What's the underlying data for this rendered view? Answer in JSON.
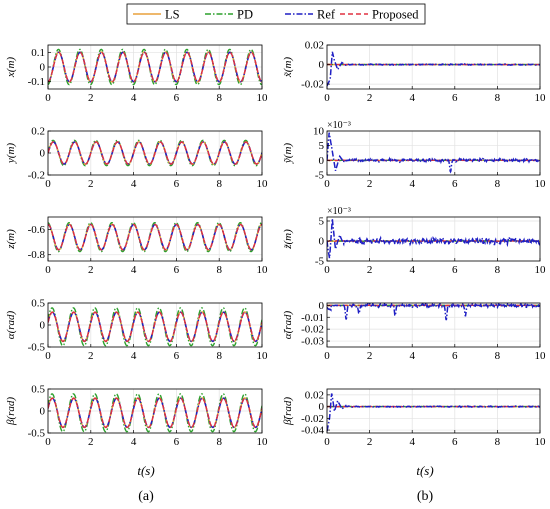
{
  "legend": [
    {
      "label": "LS",
      "color": "#E8A13B",
      "dash": "solid"
    },
    {
      "label": "PD",
      "color": "#2CA02C",
      "dash": "dashdot"
    },
    {
      "label": "Ref",
      "color": "#1F1FC4",
      "dash": "dashdot"
    },
    {
      "label": "Proposed",
      "color": "#E03040",
      "dash": "dashed"
    }
  ],
  "column_tags": {
    "left": "(a)",
    "right": "(b)"
  },
  "xlabel": "t(s)",
  "chart_data": [
    {
      "type": "line",
      "column": "a",
      "row": 0,
      "ylabel": "x(m)",
      "xlim": [
        0,
        10
      ],
      "ylim": [
        -0.15,
        0.15
      ],
      "yticks": [
        -0.1,
        0,
        0.1
      ],
      "ytick_labels": [
        "-0.1",
        "0",
        "0.1"
      ],
      "xticks": [
        0,
        2,
        4,
        6,
        8,
        10
      ],
      "grid": true,
      "signal": {
        "kind": "sine",
        "offset": 0,
        "amplitude": 0.1,
        "freq": 1.0,
        "phase": -1.5708,
        "pd_scale": 1.2
      }
    },
    {
      "type": "line",
      "column": "a",
      "row": 1,
      "ylabel": "y(m)",
      "xlim": [
        0,
        10
      ],
      "ylim": [
        -0.2,
        0.2
      ],
      "yticks": [
        -0.2,
        0,
        0.2
      ],
      "ytick_labels": [
        "-0.2",
        "0",
        "0.2"
      ],
      "xticks": [
        0,
        2,
        4,
        6,
        8,
        10
      ],
      "grid": true,
      "signal": {
        "kind": "sine",
        "offset": 0,
        "amplitude": 0.1,
        "freq": 1.0,
        "phase": 0,
        "pd_scale": 1.15
      }
    },
    {
      "type": "line",
      "column": "a",
      "row": 2,
      "ylabel": "z(m)",
      "xlim": [
        0,
        10
      ],
      "ylim": [
        -0.85,
        -0.5
      ],
      "yticks": [
        -0.8,
        -0.6
      ],
      "ytick_labels": [
        "-0.8",
        "-0.6"
      ],
      "xticks": [
        0,
        2,
        4,
        6,
        8,
        10
      ],
      "grid": true,
      "signal": {
        "kind": "sine",
        "offset": -0.66,
        "amplitude": 0.1,
        "freq": 1.0,
        "phase": 1.5708,
        "pd_scale": 1.15
      }
    },
    {
      "type": "line",
      "column": "a",
      "row": 3,
      "ylabel": "α(rad)",
      "xlim": [
        0,
        10
      ],
      "ylim": [
        -0.5,
        0.5
      ],
      "yticks": [
        -0.5,
        0,
        0.5
      ],
      "ytick_labels": [
        "-0.5",
        "0",
        "0.5"
      ],
      "xticks": [
        0,
        2,
        4,
        6,
        8,
        10
      ],
      "grid": true,
      "signal": {
        "kind": "sine",
        "offset": -0.04,
        "amplitude": 0.33,
        "freq": 1.0,
        "phase": 0.3,
        "pd_scale": 1.3
      }
    },
    {
      "type": "line",
      "column": "a",
      "row": 4,
      "ylabel": "β(rad)",
      "xlim": [
        0,
        10
      ],
      "ylim": [
        -0.5,
        0.5
      ],
      "yticks": [
        -0.5,
        0,
        0.5
      ],
      "ytick_labels": [
        "-0.5",
        "0",
        "0.5"
      ],
      "xticks": [
        0,
        2,
        4,
        6,
        8,
        10
      ],
      "grid": true,
      "signal": {
        "kind": "sine",
        "offset": -0.04,
        "amplitude": 0.33,
        "freq": 1.0,
        "phase": 0.3,
        "pd_scale": 1.3
      }
    },
    {
      "type": "line",
      "column": "b",
      "row": 0,
      "ylabel": "x̃(m)",
      "xlim": [
        0,
        10
      ],
      "ylim": [
        -0.025,
        0.02
      ],
      "yticks": [
        -0.02,
        0,
        0.02
      ],
      "ytick_labels": [
        "-0.02",
        "0",
        "0.02"
      ],
      "xticks": [
        0,
        2,
        4,
        6,
        8,
        10
      ],
      "grid": true,
      "signal": {
        "kind": "error",
        "transient": [
          [
            0,
            -0.022
          ],
          [
            0.15,
            -0.015
          ],
          [
            0.25,
            0.013
          ],
          [
            0.35,
            0.004
          ],
          [
            0.5,
            -0.005
          ],
          [
            0.7,
            0.002
          ],
          [
            0.9,
            -0.001
          ]
        ],
        "noise": 0.0008
      }
    },
    {
      "type": "line",
      "column": "b",
      "row": 1,
      "ylabel": "ỹ(m)",
      "exponent": "×10⁻³",
      "xlim": [
        0,
        10
      ],
      "ylim": [
        -5,
        10
      ],
      "yticks": [
        -5,
        0,
        5,
        10
      ],
      "ytick_labels": [
        "-5",
        "0",
        "5",
        "10"
      ],
      "xticks": [
        0,
        2,
        4,
        6,
        8,
        10
      ],
      "grid": true,
      "signal": {
        "kind": "error",
        "transient": [
          [
            0,
            0
          ],
          [
            0.1,
            9.5
          ],
          [
            0.25,
            3
          ],
          [
            0.4,
            -3.5
          ],
          [
            0.6,
            1.5
          ],
          [
            0.8,
            -1
          ]
        ],
        "noise": 0.7,
        "spikes": [
          [
            5.8,
            -4
          ]
        ]
      }
    },
    {
      "type": "line",
      "column": "b",
      "row": 2,
      "ylabel": "z̃(m)",
      "exponent": "×10⁻³",
      "xlim": [
        0,
        10
      ],
      "ylim": [
        -5,
        6
      ],
      "yticks": [
        -5,
        0,
        5
      ],
      "ytick_labels": [
        "-5",
        "0",
        "5"
      ],
      "xticks": [
        0,
        2,
        4,
        6,
        8,
        10
      ],
      "grid": true,
      "signal": {
        "kind": "error",
        "transient": [
          [
            0,
            0
          ],
          [
            0.12,
            -4.5
          ],
          [
            0.25,
            5.5
          ],
          [
            0.4,
            -2
          ],
          [
            0.6,
            1.5
          ],
          [
            0.8,
            -1
          ]
        ],
        "noise": 1.0
      }
    },
    {
      "type": "line",
      "column": "b",
      "row": 3,
      "ylabel": "α̃(rad)",
      "xlim": [
        0,
        10
      ],
      "ylim": [
        -0.035,
        0.002
      ],
      "yticks": [
        -0.03,
        -0.02,
        -0.01,
        0
      ],
      "ytick_labels": [
        "-0.03",
        "-0.02",
        "-0.01",
        "0"
      ],
      "xticks": [
        0,
        2,
        4,
        6,
        8,
        10
      ],
      "grid": true,
      "signal": {
        "kind": "error",
        "transient": [
          [
            0,
            -0.002
          ],
          [
            0.2,
            -0.004
          ]
        ],
        "noise": 0.002,
        "spikes": [
          [
            0.9,
            -0.012
          ],
          [
            1.5,
            -0.007
          ],
          [
            3.2,
            -0.008
          ],
          [
            5.6,
            -0.011
          ],
          [
            6.5,
            -0.008
          ]
        ]
      }
    },
    {
      "type": "line",
      "column": "b",
      "row": 4,
      "ylabel": "β̃(rad)",
      "xlim": [
        0,
        10
      ],
      "ylim": [
        -0.045,
        0.03
      ],
      "yticks": [
        -0.04,
        -0.02,
        0,
        0.02
      ],
      "ytick_labels": [
        "-0.04",
        "-0.02",
        "0",
        "0.02"
      ],
      "xticks": [
        0,
        2,
        4,
        6,
        8,
        10
      ],
      "grid": true,
      "signal": {
        "kind": "error",
        "transient": [
          [
            0,
            -0.042
          ],
          [
            0.12,
            -0.02
          ],
          [
            0.22,
            0.024
          ],
          [
            0.35,
            -0.008
          ],
          [
            0.5,
            0.01
          ],
          [
            0.7,
            -0.004
          ],
          [
            0.9,
            0.002
          ]
        ],
        "noise": 0.0012
      }
    }
  ]
}
